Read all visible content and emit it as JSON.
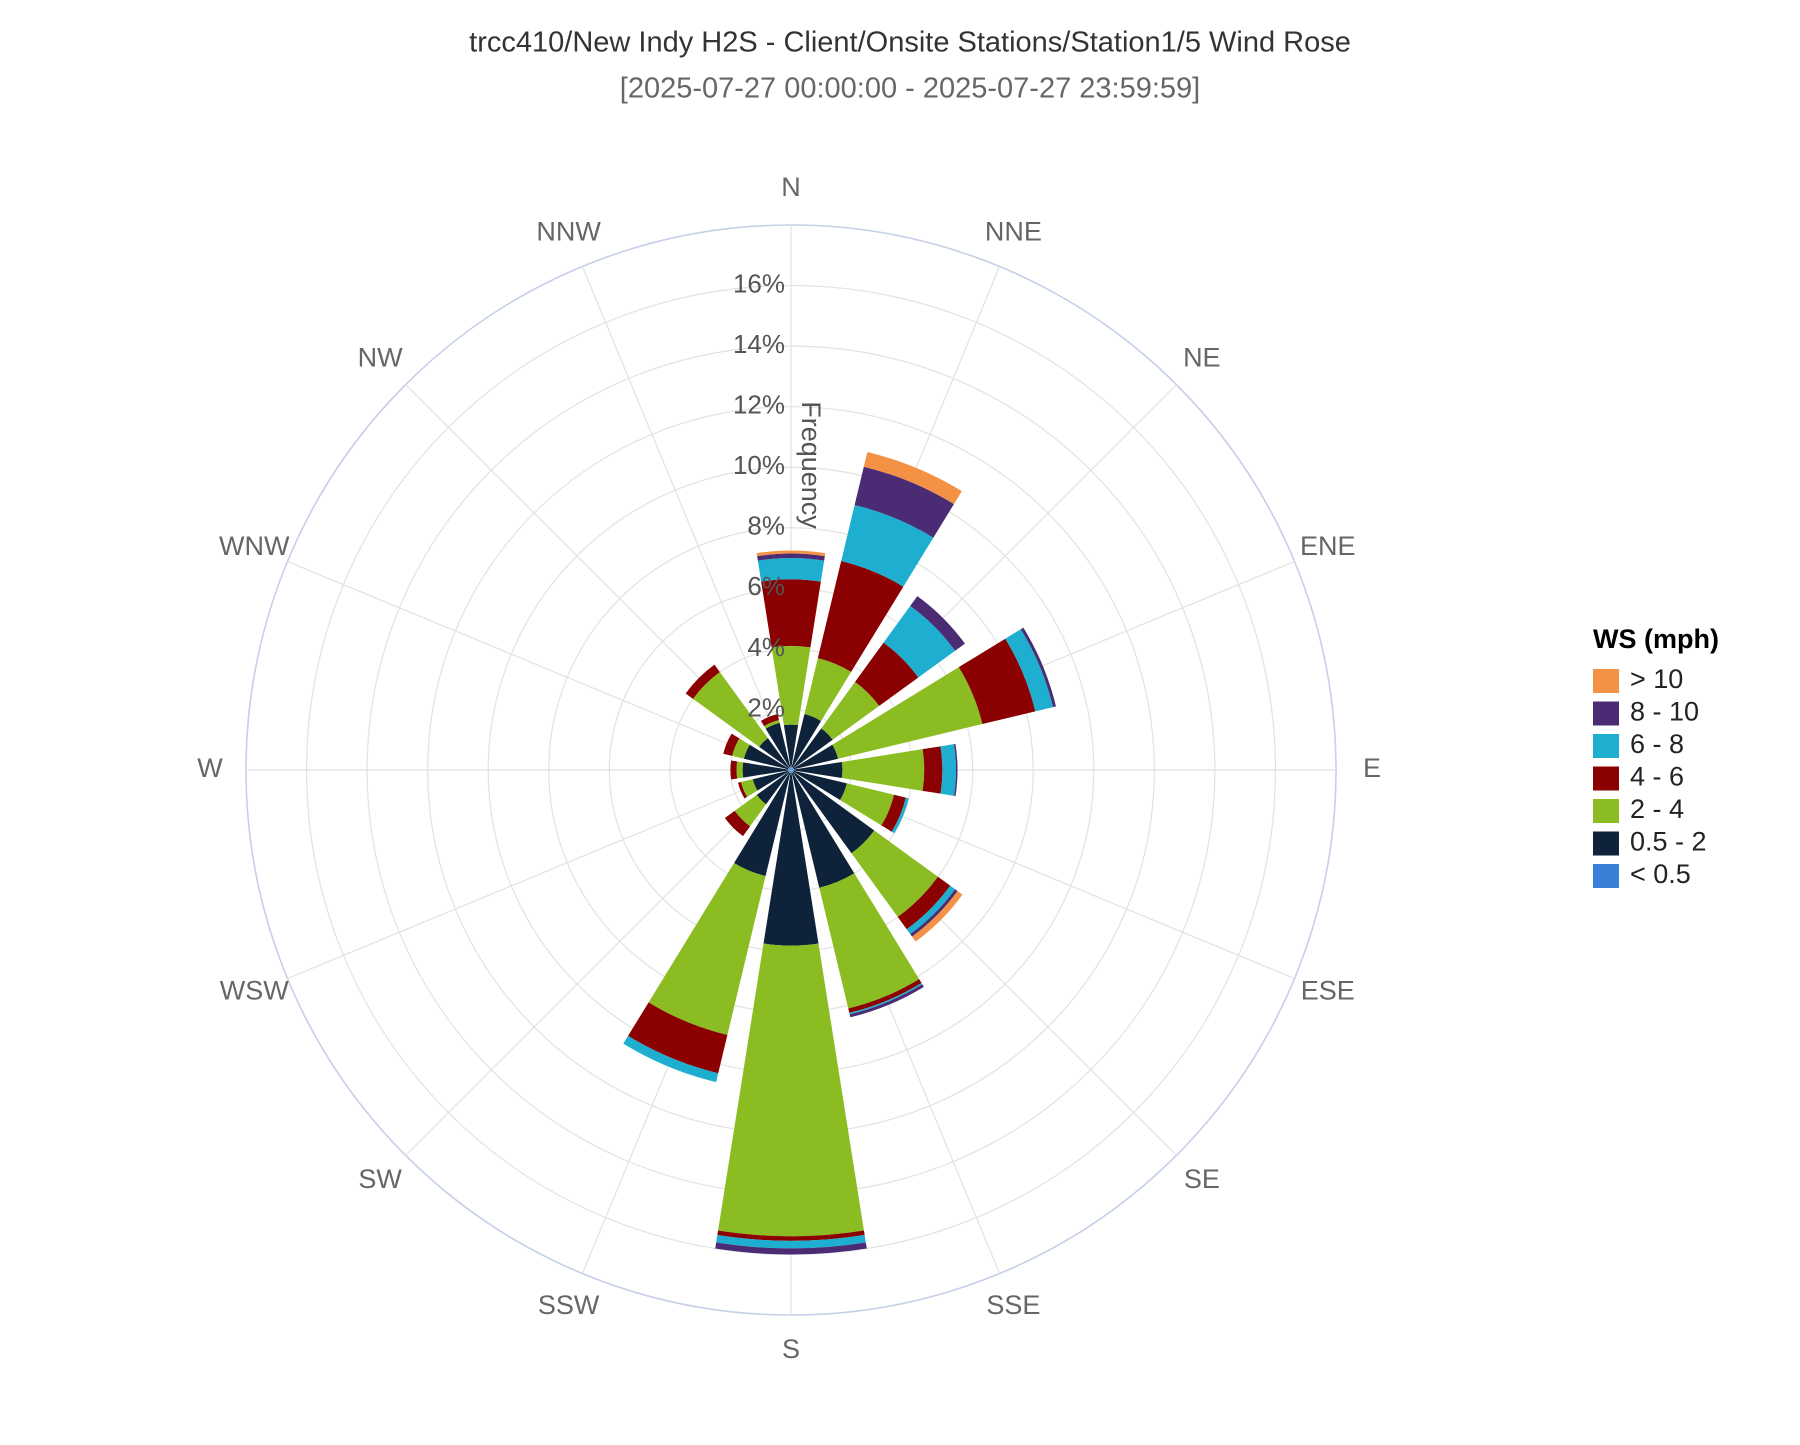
{
  "chart_data": {
    "type": "windrose",
    "title": "trcc410/New Indy H2S - Client/Onsite Stations/Station1/5 Wind Rose",
    "subtitle": "[2025-07-27 00:00:00 - 2025-07-27 23:59:59]",
    "radial_axis_label": "Frequency",
    "legend_title": "WS (mph)",
    "categories": [
      "N",
      "NNE",
      "NE",
      "ENE",
      "E",
      "ESE",
      "SE",
      "SSE",
      "S",
      "SSW",
      "SW",
      "WSW",
      "W",
      "WNW",
      "NW",
      "NNW"
    ],
    "rlim": [
      0,
      18
    ],
    "rticks": [
      {
        "value": 2,
        "label": "2%"
      },
      {
        "value": 4,
        "label": "4%"
      },
      {
        "value": 6,
        "label": "6%"
      },
      {
        "value": 8,
        "label": "8%"
      },
      {
        "value": 10,
        "label": "10%"
      },
      {
        "value": 12,
        "label": "12%"
      },
      {
        "value": 14,
        "label": "14%"
      },
      {
        "value": 16,
        "label": "16%"
      }
    ],
    "series": [
      {
        "name": "< 0.5",
        "color": "#3a80d9",
        "values": [
          0.1,
          0.1,
          0.1,
          0.1,
          0.1,
          0.1,
          0.1,
          0.1,
          0.1,
          0.1,
          0.1,
          0.1,
          0.1,
          0.1,
          0.1,
          0.1
        ]
      },
      {
        "name": "0.5 - 2",
        "color": "#0e2239",
        "values": [
          1.4,
          1.8,
          1.6,
          1.5,
          1.6,
          1.8,
          3.3,
          3.9,
          5.7,
          3.5,
          1.3,
          1.2,
          1.5,
          1.5,
          1.2,
          1.5
        ]
      },
      {
        "name": "2 - 4",
        "color": "#8bbd22",
        "values": [
          2.6,
          1.9,
          1.9,
          4.9,
          2.7,
          1.6,
          2.6,
          4.1,
          9.6,
          5.4,
          0.9,
          0.4,
          0.2,
          0.4,
          2.7,
          0.1
        ]
      },
      {
        "name": "4 - 6",
        "color": "#8b0000",
        "values": [
          2.2,
          3.3,
          1.6,
          1.8,
          0.6,
          0.4,
          0.5,
          0.15,
          0.15,
          1.3,
          0.4,
          0.1,
          0.2,
          0.3,
          0.3,
          0.2
        ]
      },
      {
        "name": "6 - 8",
        "color": "#1eaed0",
        "values": [
          0.7,
          1.9,
          1.5,
          0.6,
          0.45,
          0.1,
          0.2,
          0.05,
          0.25,
          0.3,
          0,
          0,
          0,
          0,
          0,
          0
        ]
      },
      {
        "name": "8 - 10",
        "color": "#4a2b74",
        "values": [
          0.15,
          1.3,
          0.4,
          0.1,
          0.05,
          0,
          0.1,
          0.1,
          0.2,
          0,
          0,
          0,
          0,
          0,
          0,
          0
        ]
      },
      {
        "name": "> 10",
        "color": "#f39244",
        "values": [
          0.1,
          0.5,
          0,
          0,
          0,
          0,
          0.2,
          0,
          0,
          0,
          0,
          0,
          0,
          0,
          0,
          0
        ]
      }
    ]
  }
}
